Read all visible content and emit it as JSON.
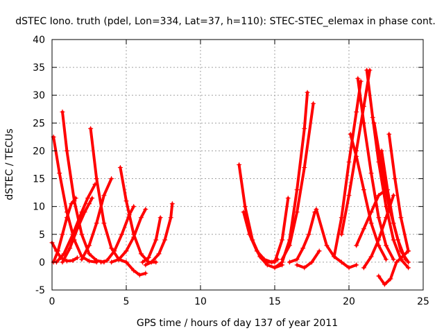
{
  "chart_data": {
    "type": "scatter",
    "title": "dSTEC Iono. truth (pdel, Lon=334, Lat=37, h=110): STEC-STEC_elemax in phase cont.",
    "xlabel": "GPS time / hours of day 137 of year 2011",
    "ylabel": "dSTEC  / TECUs",
    "xlim": [
      0,
      25
    ],
    "ylim": [
      -5,
      40
    ],
    "xticks": [
      0,
      5,
      10,
      15,
      20,
      25
    ],
    "yticks": [
      -5,
      0,
      5,
      10,
      15,
      20,
      25,
      30,
      35,
      40
    ],
    "grid": true,
    "legend": "none",
    "marker": "plus",
    "color": "#ff0000",
    "series": [
      {
        "x": [
          0.1,
          0.5,
          1.0,
          1.5,
          2.0,
          2.5,
          3.0
        ],
        "y": [
          22.5,
          16,
          9,
          4,
          1,
          0.2,
          0
        ]
      },
      {
        "x": [
          0.7,
          1.0,
          1.5,
          2.0,
          2.5,
          3.0,
          3.5
        ],
        "y": [
          27,
          20,
          11,
          5,
          1.5,
          0.3,
          0
        ]
      },
      {
        "x": [
          0,
          0.3,
          0.6,
          1.0,
          1.4,
          1.7
        ],
        "y": [
          3.5,
          2,
          0.8,
          0.2,
          0.3,
          0.8
        ]
      },
      {
        "x": [
          0.1,
          0.4,
          0.7,
          1.0,
          1.3,
          1.6
        ],
        "y": [
          0,
          2,
          5,
          8,
          10.5,
          11.5
        ]
      },
      {
        "x": [
          0.3,
          0.8,
          1.4,
          2.0,
          2.4,
          2.9
        ],
        "y": [
          0,
          1.5,
          5,
          9,
          11.5,
          14
        ]
      },
      {
        "x": [
          0.7,
          1.2,
          1.7,
          2.2,
          2.5,
          2.7
        ],
        "y": [
          0,
          2.5,
          6,
          9,
          10.5,
          11.5
        ]
      },
      {
        "x": [
          2.6,
          3.0,
          3.5,
          4.0,
          4.5,
          5.0
        ],
        "y": [
          24,
          15,
          7,
          2.5,
          0.5,
          0
        ]
      },
      {
        "x": [
          2.0,
          2.5,
          3.0,
          3.5,
          4.0
        ],
        "y": [
          0.5,
          3,
          7,
          12,
          15
        ]
      },
      {
        "x": [
          3.3,
          3.7,
          4.2,
          4.7,
          5.2,
          5.5
        ],
        "y": [
          0,
          0.3,
          2,
          5,
          8.5,
          10
        ]
      },
      {
        "x": [
          4.6,
          5.0,
          5.5,
          6.0,
          6.5,
          7.0
        ],
        "y": [
          17,
          11,
          5,
          1.5,
          0,
          0
        ]
      },
      {
        "x": [
          4.0,
          4.5,
          5.0,
          5.5,
          6.0,
          6.3
        ],
        "y": [
          0,
          0.5,
          2,
          4.5,
          8,
          9.5
        ]
      },
      {
        "x": [
          4.5,
          5.0,
          5.5,
          5.9,
          6.3
        ],
        "y": [
          0.5,
          0,
          -1.5,
          -2.3,
          -2
        ]
      },
      {
        "x": [
          6.1,
          6.5,
          7.0,
          7.3
        ],
        "y": [
          0,
          0.8,
          4,
          8
        ]
      },
      {
        "x": [
          6.3,
          6.7,
          7.2,
          7.6,
          8.0,
          8.1
        ],
        "y": [
          -0.5,
          0,
          1.5,
          4,
          8,
          10.5
        ]
      },
      {
        "x": [
          12.6,
          13.0,
          13.5,
          14.0,
          14.5,
          15.0,
          15.5
        ],
        "y": [
          17.5,
          10,
          4,
          1,
          -0.5,
          -1,
          -0.5
        ]
      },
      {
        "x": [
          12.9,
          13.3,
          13.8,
          14.3,
          14.8,
          15.2
        ],
        "y": [
          9,
          5,
          2,
          0.5,
          0,
          0.5
        ]
      },
      {
        "x": [
          14.5,
          15.0,
          15.5,
          15.9
        ],
        "y": [
          0,
          0,
          4,
          11.5
        ]
      },
      {
        "x": [
          15.0,
          15.5,
          16.0,
          16.5,
          17.0,
          17.2
        ],
        "y": [
          -1,
          0,
          4,
          13,
          24,
          30.5
        ]
      },
      {
        "x": [
          15.5,
          16.0,
          16.5,
          17.0,
          17.6
        ],
        "y": [
          0.5,
          3,
          9,
          17,
          28.5
        ]
      },
      {
        "x": [
          16.0,
          16.5,
          16.9,
          17.3,
          17.7
        ],
        "y": [
          0,
          0.5,
          2.5,
          5,
          9
        ]
      },
      {
        "x": [
          16.5,
          17.0,
          17.5,
          18.0
        ],
        "y": [
          -0.5,
          -1,
          0,
          2
        ]
      },
      {
        "x": [
          17.8,
          18.5,
          19.0,
          19.5,
          20.0,
          20.5
        ],
        "y": [
          9.5,
          3,
          1,
          0,
          -1,
          -0.5
        ]
      },
      {
        "x": [
          19.0,
          19.5,
          20.0,
          20.5,
          20.8
        ],
        "y": [
          1,
          8,
          18,
          27,
          32.5
        ]
      },
      {
        "x": [
          19.5,
          20.0,
          20.5,
          21.0,
          21.4
        ],
        "y": [
          5,
          12,
          20,
          28,
          34.5
        ]
      },
      {
        "x": [
          20.1,
          20.5,
          21.0,
          21.5,
          22.0,
          22.5
        ],
        "y": [
          23,
          19,
          13,
          7,
          3,
          0.5
        ]
      },
      {
        "x": [
          20.6,
          21.0,
          21.5,
          22.0,
          22.5,
          23.0
        ],
        "y": [
          33,
          25,
          16,
          8,
          3,
          0.5
        ]
      },
      {
        "x": [
          21.2,
          21.6,
          22.0,
          22.5,
          23.0,
          23.5,
          24.0
        ],
        "y": [
          34.5,
          26,
          18,
          10,
          4,
          0.5,
          -1
        ]
      },
      {
        "x": [
          21.7,
          22.2,
          22.7,
          23.3,
          23.8
        ],
        "y": [
          25,
          17,
          10,
          4,
          0.5
        ]
      },
      {
        "x": [
          22.2,
          22.6,
          23.0,
          23.5,
          24.0
        ],
        "y": [
          20,
          13,
          7,
          2,
          0
        ]
      },
      {
        "x": [
          22.0,
          22.4,
          22.8,
          23.2,
          23.6,
          24.0
        ],
        "y": [
          -2.5,
          -4,
          -3,
          0,
          1,
          2
        ]
      },
      {
        "x": [
          21.0,
          21.5,
          22.0,
          22.5,
          23.0
        ],
        "y": [
          -1,
          1,
          4,
          8,
          12
        ]
      },
      {
        "x": [
          22.7,
          23.1,
          23.5,
          24.0
        ],
        "y": [
          23,
          15,
          8,
          2
        ]
      },
      {
        "x": [
          20.5,
          21.0,
          21.5,
          22.0,
          22.5
        ],
        "y": [
          3,
          6,
          9,
          12,
          13
        ]
      }
    ]
  }
}
